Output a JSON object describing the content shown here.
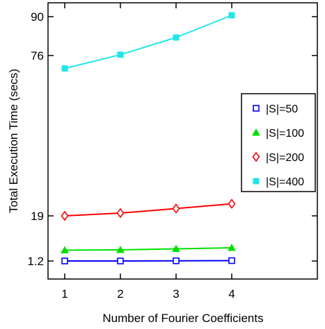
{
  "chart_data": {
    "type": "line",
    "title": "",
    "xlabel": "Number of Fourier Coefficients",
    "ylabel": "Total Execution Time (secs)",
    "x": [
      1,
      2,
      3,
      4
    ],
    "x_ticks": [
      "1",
      "2",
      "3",
      "4"
    ],
    "y_ticks": [
      {
        "value": 1.2,
        "label": "1.2"
      },
      {
        "value": 19,
        "label": "19"
      },
      {
        "value": 76,
        "label": "76"
      },
      {
        "value": 90,
        "label": "90"
      }
    ],
    "y_scale": "piecewise (non-linear tick spacing)",
    "xlim": [
      0.75,
      5.5
    ],
    "grid": false,
    "legend_position": "right",
    "series": [
      {
        "name": "|S|=50",
        "marker": "open-square",
        "color": "#0000ff",
        "values": [
          1.2,
          1.2,
          1.25,
          1.3
        ]
      },
      {
        "name": "|S|=100",
        "marker": "filled-triangle",
        "color": "#00e000",
        "values": [
          4.3,
          4.4,
          4.7,
          5.0
        ]
      },
      {
        "name": "|S|=200",
        "marker": "open-diamond",
        "color": "#ff0000",
        "values": [
          19.0,
          20.0,
          21.6,
          23.3
        ]
      },
      {
        "name": "|S|=400",
        "marker": "filled-square",
        "color": "#22e5e8",
        "values": [
          71.4,
          76.3,
          82.5,
          90.5
        ]
      }
    ]
  }
}
